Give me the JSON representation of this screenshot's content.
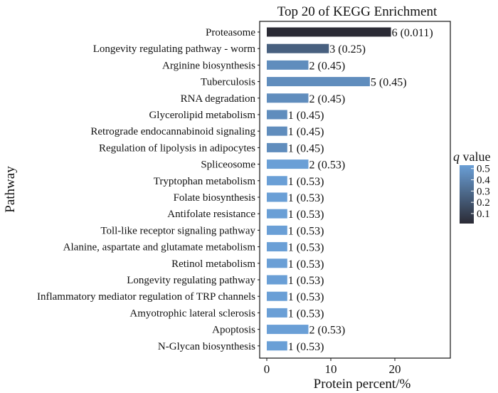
{
  "chart_data": {
    "type": "bar",
    "orientation": "horizontal",
    "title": "Top 20 of KEGG Enrichment",
    "xlabel": "Protein percent/%",
    "ylabel": "Pathway",
    "xlim": [
      0,
      29
    ],
    "xticks": [
      0,
      10,
      20
    ],
    "grid": false,
    "legend_position": "right",
    "legend": {
      "title_italic": "q",
      "title_rest": " value",
      "ticks": [
        0.5,
        0.4,
        0.3,
        0.2,
        0.1
      ],
      "range": [
        0.011,
        0.53
      ],
      "color_low": "#2b2b35",
      "color_high": "#6a9fd6"
    },
    "categories": [
      "Proteasome",
      "Longevity regulating pathway - worm",
      "Arginine biosynthesis",
      "Tuberculosis",
      "RNA degradation",
      "Glycerolipid metabolism",
      "Retrograde endocannabinoid signaling",
      "Regulation of lipolysis in adipocytes",
      "Spliceosome",
      "Tryptophan metabolism",
      "Folate biosynthesis",
      "Antifolate resistance",
      "Toll-like receptor signaling pathway",
      "Alanine, aspartate and glutamate metabolism",
      "Retinol metabolism",
      "Longevity regulating pathway",
      "Inflammatory mediator regulation of TRP channels",
      "Amyotrophic lateral sclerosis",
      "Apoptosis",
      "N-Glycan biosynthesis"
    ],
    "values": [
      19.4,
      9.7,
      6.5,
      16.1,
      6.5,
      3.2,
      3.2,
      3.2,
      6.5,
      3.2,
      3.2,
      3.2,
      3.2,
      3.2,
      3.2,
      3.2,
      3.2,
      3.2,
      6.5,
      3.2
    ],
    "q_values": [
      0.011,
      0.25,
      0.45,
      0.45,
      0.45,
      0.45,
      0.45,
      0.45,
      0.53,
      0.53,
      0.53,
      0.53,
      0.53,
      0.53,
      0.53,
      0.53,
      0.53,
      0.53,
      0.53,
      0.53
    ],
    "data_labels": [
      "6 (0.011)",
      "3 (0.25)",
      "2 (0.45)",
      "5 (0.45)",
      "2 (0.45)",
      "1 (0.45)",
      "1 (0.45)",
      "1 (0.45)",
      "2 (0.53)",
      "1 (0.53)",
      "1 (0.53)",
      "1 (0.53)",
      "1 (0.53)",
      "1 (0.53)",
      "1 (0.53)",
      "1 (0.53)",
      "1 (0.53)",
      "1 (0.53)",
      "2 (0.53)",
      "1 (0.53)"
    ]
  }
}
